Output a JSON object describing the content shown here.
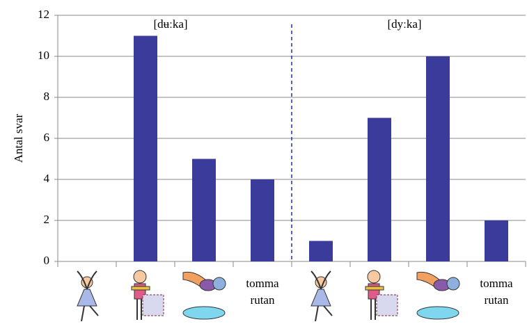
{
  "chart_data": {
    "type": "bar",
    "categories": [
      null,
      null,
      null,
      "tomma rutan",
      null,
      null,
      null,
      "tomma rutan"
    ],
    "values": [
      0,
      11,
      5,
      4,
      1,
      7,
      10,
      2
    ],
    "color": "#3b3b9c",
    "ylabel": "Antal svar",
    "annotations": [
      "[dʉːka]",
      "[dyːka]"
    ],
    "ylim": [
      0,
      12
    ],
    "yticks": [
      0,
      2,
      4,
      6,
      8,
      10,
      12
    ],
    "grid": true
  }
}
